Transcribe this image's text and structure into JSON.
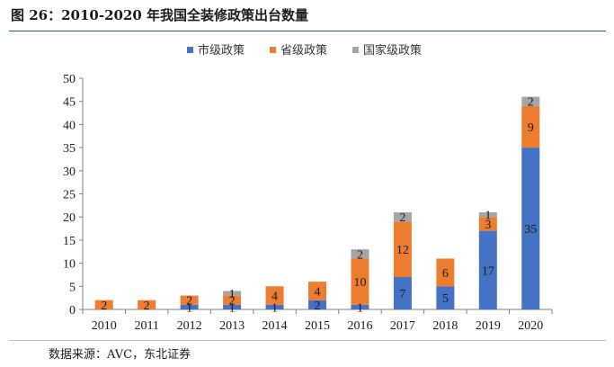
{
  "figure": {
    "title": "图 26：2010-2020 年我国全装修政策出台数量",
    "source": "数据来源：AVC，东北证券"
  },
  "chart_data": {
    "type": "bar",
    "stacked": true,
    "categories": [
      "2010",
      "2011",
      "2012",
      "2013",
      "2014",
      "2015",
      "2016",
      "2017",
      "2018",
      "2019",
      "2020"
    ],
    "series": [
      {
        "name": "市级政策",
        "color": "#4472c4",
        "values": [
          0,
          0,
          1,
          1,
          1,
          2,
          1,
          7,
          5,
          17,
          35
        ]
      },
      {
        "name": "省级政策",
        "color": "#ed7d31",
        "values": [
          2,
          2,
          2,
          2,
          4,
          4,
          10,
          12,
          6,
          3,
          9
        ]
      },
      {
        "name": "国家级政策",
        "color": "#a5a5a5",
        "values": [
          0,
          0,
          0,
          1,
          0,
          0,
          2,
          2,
          0,
          1,
          2
        ]
      }
    ],
    "ylim": [
      0,
      50
    ],
    "yticks": [
      0,
      5,
      10,
      15,
      20,
      25,
      30,
      35,
      40,
      45,
      50
    ],
    "grid": false,
    "legend_position": "top-center"
  }
}
